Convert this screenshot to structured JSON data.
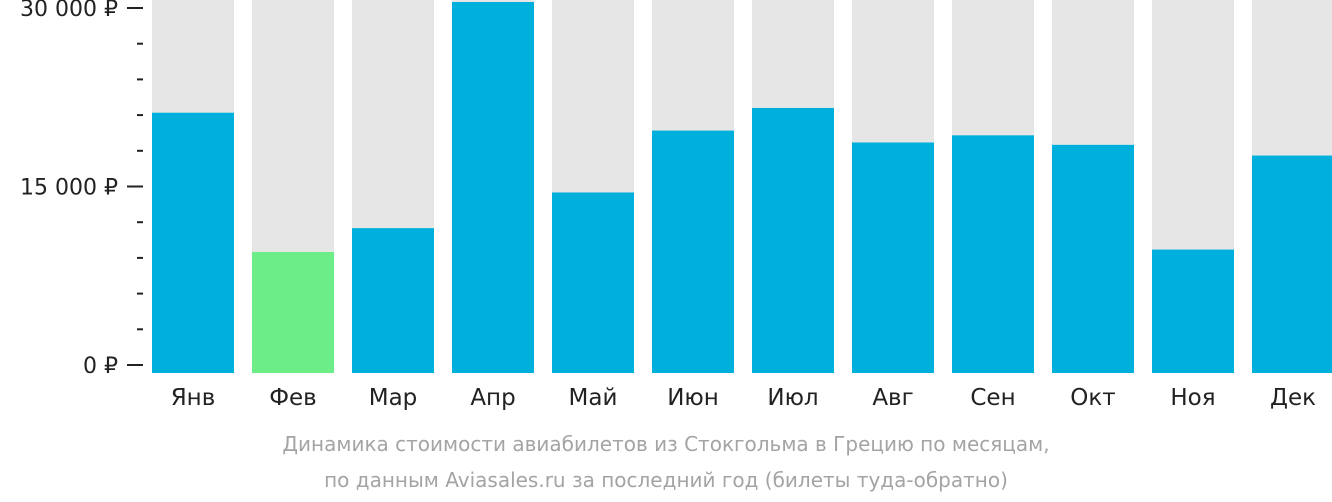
{
  "chart_data": {
    "type": "bar",
    "categories": [
      "Янв",
      "Фев",
      "Мар",
      "Апр",
      "Май",
      "Июн",
      "Июл",
      "Авг",
      "Сен",
      "Окт",
      "Ноя",
      "Дек"
    ],
    "values": [
      21200,
      9500,
      11500,
      30800,
      14500,
      19700,
      21600,
      18700,
      19300,
      18500,
      9700,
      17600
    ],
    "ylim": [
      0,
      30000
    ],
    "y_ticks": [
      {
        "value": 0,
        "label": "0 ₽"
      },
      {
        "value": 15000,
        "label": "15 000 ₽"
      },
      {
        "value": 30000,
        "label": "30 000 ₽"
      }
    ],
    "minor_tick_step": 3000,
    "highlight_index": 1,
    "caption": [
      "Динамика стоимости авиабилетов из Стокгольма в Грецию по месяцам,",
      "по данным Aviasales.ru за последний год (билеты туда-обратно)"
    ],
    "colors": {
      "bar": "#00b0dc",
      "highlight": "#6ced88",
      "background_bar": "#e6e6e6",
      "axis": "#222222",
      "caption": "#a4a4a4"
    }
  }
}
